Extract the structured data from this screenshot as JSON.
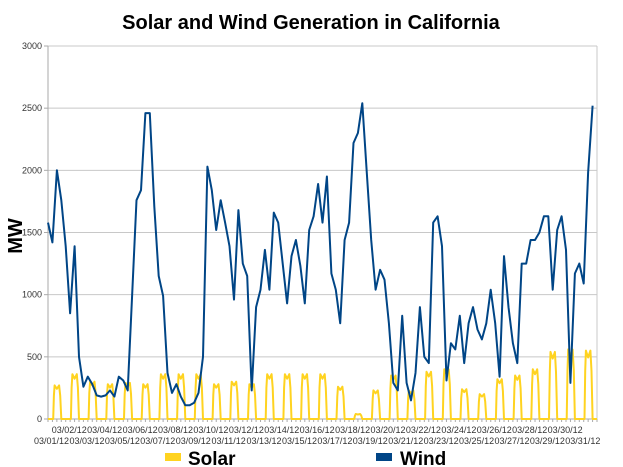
{
  "chart_data": {
    "type": "line",
    "title": "Solar and Wind Generation in California",
    "ylabel": "MW",
    "xlabel": "",
    "ylim": [
      0,
      3000
    ],
    "yticks": [
      0,
      500,
      1000,
      1500,
      2000,
      2500,
      3000
    ],
    "grid": true,
    "legend_position": "bottom",
    "dates": [
      "03/01/12",
      "03/02/12",
      "03/03/12",
      "03/04/12",
      "03/05/12",
      "03/06/12",
      "03/07/12",
      "03/08/12",
      "03/09/12",
      "03/10/12",
      "03/11/12",
      "03/12/12",
      "03/13/12",
      "03/14/12",
      "03/15/12",
      "03/16/12",
      "03/17/12",
      "03/18/12",
      "03/19/12",
      "03/20/12",
      "03/21/12",
      "03/22/12",
      "03/23/12",
      "03/24/12",
      "03/25/12",
      "03/26/12",
      "03/27/12",
      "03/28/12",
      "03/29/12",
      "03/30/12",
      "03/31/12"
    ],
    "sample_hours": [
      0,
      6,
      12,
      18
    ],
    "series": [
      {
        "name": "Solar",
        "color": "#ffd320",
        "daily_peak_mw": [
          270,
          360,
          300,
          280,
          290,
          280,
          360,
          360,
          360,
          280,
          300,
          280,
          360,
          360,
          360,
          360,
          260,
          40,
          230,
          350,
          230,
          380,
          400,
          240,
          200,
          320,
          350,
          400,
          540,
          560,
          550
        ]
      },
      {
        "name": "Wind",
        "color": "#004586",
        "values": [
          [
            1580,
            1420,
            2000,
            1760
          ],
          [
            1390,
            850,
            1390,
            500
          ],
          [
            260,
            340,
            280,
            190
          ],
          [
            180,
            190,
            230,
            180
          ],
          [
            340,
            310,
            230,
            990
          ],
          [
            1760,
            1840,
            2460,
            2460
          ],
          [
            1710,
            1150,
            990,
            370
          ],
          [
            210,
            280,
            180,
            110
          ],
          [
            110,
            130,
            210,
            500
          ],
          [
            2030,
            1840,
            1520,
            1760
          ],
          [
            1580,
            1390,
            960,
            1680
          ],
          [
            1250,
            1150,
            230,
            900
          ],
          [
            1040,
            1360,
            1040,
            1660
          ],
          [
            1580,
            1250,
            930,
            1310
          ],
          [
            1440,
            1230,
            930,
            1520
          ],
          [
            1630,
            1890,
            1580,
            1950
          ],
          [
            1170,
            1040,
            770,
            1440
          ],
          [
            1580,
            2220,
            2300,
            2540
          ],
          [
            1980,
            1440,
            1040,
            1200
          ],
          [
            1120,
            770,
            290,
            230
          ],
          [
            830,
            290,
            150,
            370
          ],
          [
            900,
            500,
            450,
            1580
          ],
          [
            1630,
            1390,
            310,
            610
          ],
          [
            560,
            830,
            450,
            770
          ],
          [
            900,
            720,
            640,
            770
          ],
          [
            1040,
            770,
            340,
            1310
          ],
          [
            900,
            610,
            450,
            1250
          ],
          [
            1250,
            1440,
            1440,
            1500
          ],
          [
            1630,
            1630,
            1040,
            1520
          ],
          [
            1630,
            1360,
            290,
            1170
          ],
          [
            1250,
            1090,
            1980,
            2520
          ]
        ]
      }
    ]
  }
}
